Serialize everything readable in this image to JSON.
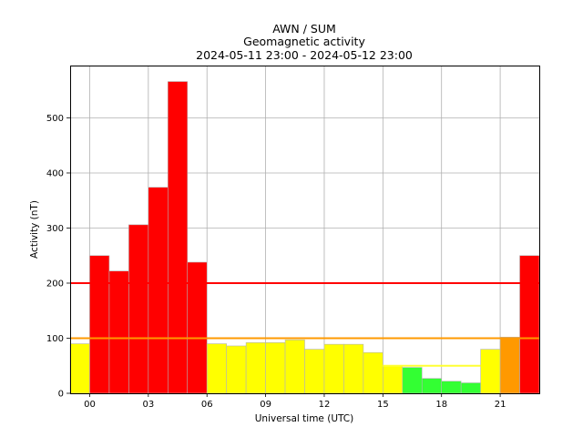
{
  "chart_data": {
    "type": "bar",
    "title": [
      "AWN / SUM",
      "Geomagnetic activity",
      "2024-05-11 23:00 - 2024-05-12 23:00"
    ],
    "xlabel": "Universal time (UTC)",
    "ylabel": "Activity (nT)",
    "x_ticks": [
      "00",
      "03",
      "06",
      "09",
      "12",
      "15",
      "18",
      "21"
    ],
    "y_ticks": [
      "0",
      "100",
      "200",
      "300",
      "400",
      "500"
    ],
    "ylim": [
      0,
      595
    ],
    "xlim": [
      -1,
      23
    ],
    "grid": true,
    "bars": [
      {
        "start": -1,
        "value": 90,
        "color": "#ffff00"
      },
      {
        "start": 0,
        "value": 250,
        "color": "#ff0000"
      },
      {
        "start": 1,
        "value": 222,
        "color": "#ff0000"
      },
      {
        "start": 2,
        "value": 306,
        "color": "#ff0000"
      },
      {
        "start": 3,
        "value": 374,
        "color": "#ff0000"
      },
      {
        "start": 4,
        "value": 566,
        "color": "#ff0000"
      },
      {
        "start": 5,
        "value": 238,
        "color": "#ff0000"
      },
      {
        "start": 6,
        "value": 90,
        "color": "#ffff00"
      },
      {
        "start": 7,
        "value": 86,
        "color": "#ffff00"
      },
      {
        "start": 8,
        "value": 92,
        "color": "#ffff00"
      },
      {
        "start": 9,
        "value": 92,
        "color": "#ffff00"
      },
      {
        "start": 10,
        "value": 97,
        "color": "#ffff00"
      },
      {
        "start": 11,
        "value": 80,
        "color": "#ffff00"
      },
      {
        "start": 12,
        "value": 89,
        "color": "#ffff00"
      },
      {
        "start": 13,
        "value": 89,
        "color": "#ffff00"
      },
      {
        "start": 14,
        "value": 74,
        "color": "#ffff00"
      },
      {
        "start": 15,
        "value": 50,
        "color": "#ffff00"
      },
      {
        "start": 16,
        "value": 47,
        "color": "#33ff33"
      },
      {
        "start": 17,
        "value": 27,
        "color": "#33ff33"
      },
      {
        "start": 18,
        "value": 22,
        "color": "#33ff33"
      },
      {
        "start": 19,
        "value": 19,
        "color": "#33ff33"
      },
      {
        "start": 20,
        "value": 80,
        "color": "#ffff00"
      },
      {
        "start": 21,
        "value": 102,
        "color": "#ff9900"
      },
      {
        "start": 22,
        "value": 250,
        "color": "#ff0000"
      }
    ],
    "thresholds": [
      {
        "value": 200,
        "from": -1,
        "to": 23,
        "color": "#ff0000"
      },
      {
        "value": 100,
        "from": -1,
        "to": 23,
        "color": "#ff9900"
      },
      {
        "value": 50,
        "from": 15,
        "to": 20,
        "color": "#ffff33"
      }
    ]
  }
}
